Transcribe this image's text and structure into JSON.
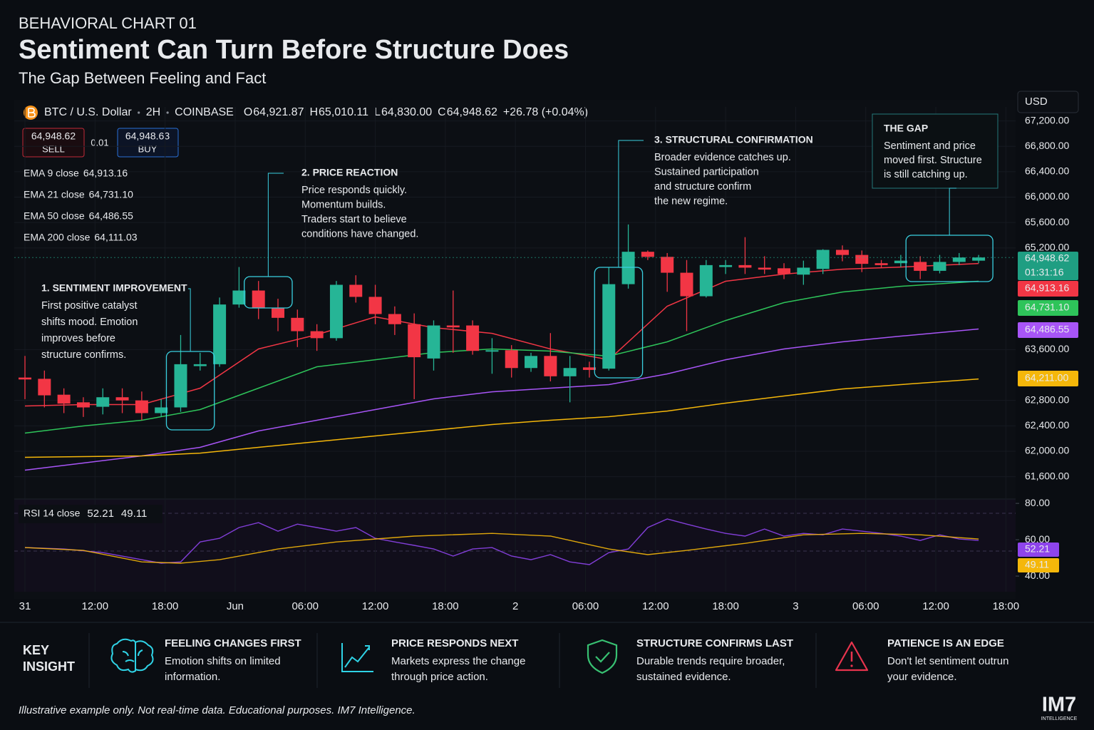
{
  "header": {
    "kicker": "BEHAVIORAL CHART 01",
    "title": "Sentiment Can Turn Before Structure Does",
    "subtitle": "The Gap Between Feeling and Fact"
  },
  "symbol": {
    "name": "BTC / U.S. Dollar",
    "interval": "2H",
    "exchange": "COINBASE",
    "ohlc": [
      {
        "key": "O",
        "value": "64,921.87"
      },
      {
        "key": "H",
        "value": "65,010.11"
      },
      {
        "key": "L",
        "value": "64,830.00"
      },
      {
        "key": "C",
        "value": "64,948.62"
      }
    ],
    "change": "+26.78 (+0.04%)"
  },
  "trade": {
    "sell_price": "64,948.62",
    "sell": "SELL",
    "spread": "0.01",
    "buy_price": "64,948.63",
    "buy": "BUY"
  },
  "price_axis": {
    "currency": "USD",
    "last_price": "64,948.62",
    "countdown": "01:31:16"
  },
  "chart_data": [
    {
      "type": "candlestick",
      "up_color": "#26b596",
      "down_color": "#f23645",
      "grid": true,
      "open": [
        63160,
        63140,
        62890,
        62770,
        62700,
        62850,
        62800,
        62600,
        62690,
        63340,
        63370,
        64310,
        64530,
        64260,
        64100,
        63890,
        63780,
        64620,
        64430,
        64160,
        64000,
        63460,
        63980,
        63980,
        63570,
        63590,
        63310,
        63500,
        63180,
        63320,
        63300,
        64630,
        65140,
        65060,
        64810,
        64440,
        64900,
        64930,
        64890,
        64880,
        64780,
        64870,
        65170,
        65090,
        64960,
        64960,
        64980,
        64840,
        64980,
        65000
      ],
      "high": [
        63500,
        63270,
        62990,
        62850,
        62990,
        62990,
        62940,
        62820,
        63830,
        63550,
        64420,
        64900,
        64680,
        64400,
        64230,
        64000,
        64680,
        64770,
        64620,
        64280,
        64170,
        64060,
        64530,
        64060,
        63780,
        63670,
        63550,
        63860,
        63500,
        63410,
        64900,
        65570,
        65160,
        65120,
        65010,
        65010,
        65010,
        65370,
        65070,
        64960,
        65000,
        65180,
        65240,
        65160,
        65010,
        65090,
        65070,
        65090,
        65120,
        65090
      ],
      "low": [
        62820,
        62690,
        62600,
        62540,
        62580,
        62600,
        62490,
        62540,
        62620,
        63270,
        63330,
        64260,
        64080,
        63890,
        63640,
        63580,
        63740,
        64340,
        64000,
        63830,
        62820,
        63270,
        63550,
        63520,
        63220,
        63160,
        63250,
        63100,
        62770,
        63160,
        63270,
        64560,
        65010,
        64510,
        63890,
        64420,
        64790,
        64790,
        64790,
        64710,
        64620,
        64790,
        64990,
        64820,
        64890,
        64900,
        64710,
        64800,
        64930,
        64960
      ],
      "close": [
        63130,
        62880,
        62750,
        62690,
        62850,
        62800,
        62600,
        62690,
        63370,
        63370,
        64310,
        64530,
        64260,
        64100,
        63890,
        63780,
        64620,
        64430,
        64160,
        64000,
        63480,
        63980,
        63950,
        63580,
        63590,
        63310,
        63500,
        63180,
        63310,
        63280,
        64630,
        65140,
        65060,
        64810,
        64440,
        64930,
        64930,
        64890,
        64860,
        64790,
        64890,
        65170,
        65090,
        64950,
        64930,
        65000,
        64840,
        64980,
        65050,
        65050
      ],
      "xlim": [
        -0.55,
        50.9
      ],
      "xticks": [
        {
          "value": 0,
          "label": "31"
        },
        {
          "value": 3.6,
          "label": "12:00"
        },
        {
          "value": 7.2,
          "label": "18:00"
        },
        {
          "value": 10.8,
          "label": "Jun"
        },
        {
          "value": 14.4,
          "label": "06:00"
        },
        {
          "value": 18,
          "label": "12:00"
        },
        {
          "value": 21.6,
          "label": "18:00"
        },
        {
          "value": 25.2,
          "label": "2"
        },
        {
          "value": 28.8,
          "label": "06:00"
        },
        {
          "value": 32.4,
          "label": "12:00"
        },
        {
          "value": 36,
          "label": "18:00"
        },
        {
          "value": 39.6,
          "label": "3"
        },
        {
          "value": 43.2,
          "label": "06:00"
        },
        {
          "value": 46.8,
          "label": "12:00"
        },
        {
          "value": 50.4,
          "label": "18:00"
        }
      ],
      "ylim": [
        61360,
        67420
      ],
      "yticks": [
        {
          "value": 67200,
          "label": "67,200.00"
        },
        {
          "value": 66800,
          "label": "66,800.00"
        },
        {
          "value": 66400,
          "label": "66,400.00"
        },
        {
          "value": 66000,
          "label": "66,000.00"
        },
        {
          "value": 65600,
          "label": "65,600.00"
        },
        {
          "value": 65200,
          "label": "65,200.00"
        },
        {
          "value": 63600,
          "label": "63,600.00"
        },
        {
          "value": 62800,
          "label": "62,800.00"
        },
        {
          "value": 62400,
          "label": "62,400.00"
        },
        {
          "value": 62000,
          "label": "62,000.00"
        },
        {
          "value": 61600,
          "label": "61,600.00"
        }
      ],
      "series": [
        {
          "name": "EMA 9 close",
          "color": "#f23645",
          "x": [
            0,
            3,
            6,
            9,
            12,
            15,
            18,
            21,
            24,
            27,
            30,
            33,
            36,
            39,
            42,
            45,
            49
          ],
          "values": [
            62712,
            62735,
            62735,
            62993,
            63610,
            63834,
            64115,
            63946,
            63856,
            63610,
            63441,
            64283,
            64676,
            64788,
            64866,
            64900,
            64956
          ],
          "last": {
            "value": 64913.16,
            "label": "64,913.16"
          }
        },
        {
          "name": "EMA 21 close",
          "color": "#2ec45a",
          "x": [
            0,
            3,
            6,
            9,
            12,
            15,
            18,
            21,
            24,
            27,
            30,
            33,
            36,
            39,
            42,
            45,
            49
          ],
          "values": [
            62286,
            62398,
            62488,
            62656,
            62993,
            63329,
            63441,
            63554,
            63610,
            63576,
            63497,
            63722,
            64058,
            64339,
            64507,
            64597,
            64676
          ],
          "last": {
            "value": 64731.1,
            "label": "64,731.10"
          }
        },
        {
          "name": "EMA 50 close",
          "color": "#a855f7",
          "x": [
            0,
            3,
            6,
            9,
            12,
            15,
            18,
            21,
            24,
            27,
            30,
            33,
            36,
            39,
            42,
            45,
            49
          ],
          "values": [
            61702,
            61814,
            61927,
            62061,
            62319,
            62488,
            62656,
            62824,
            62936,
            62993,
            63049,
            63217,
            63441,
            63610,
            63722,
            63812,
            63924
          ],
          "last": {
            "value": 64486.55,
            "label": "64,486.55"
          }
        },
        {
          "name": "EMA 200 close",
          "color": "#f5b70a",
          "x": [
            0,
            3,
            6,
            9,
            12,
            15,
            18,
            21,
            24,
            27,
            30,
            33,
            36,
            39,
            42,
            45,
            49
          ],
          "values": [
            61904,
            61915,
            61927,
            61971,
            62061,
            62151,
            62241,
            62331,
            62420,
            62488,
            62544,
            62633,
            62757,
            62869,
            62981,
            63049,
            63138
          ],
          "last": {
            "value": 64111.03,
            "label": "64,111.03"
          },
          "badge": {
            "value": 64211,
            "label": "64,211.00"
          }
        }
      ]
    },
    {
      "type": "line",
      "title": "RSI 14 close",
      "xlim": [
        -0.55,
        50.9
      ],
      "ylim": [
        31.4,
        82.4
      ],
      "yticks": [
        {
          "value": 80,
          "label": "80.00"
        },
        {
          "value": 60,
          "label": "60.00"
        },
        {
          "value": 40,
          "label": "40.00"
        }
      ],
      "series": [
        {
          "color": "#8e44ec",
          "x": [
            0,
            2,
            4,
            6,
            7,
            8,
            9,
            10,
            11,
            12,
            13,
            14,
            15,
            16,
            17,
            18,
            19,
            20,
            21,
            22,
            23,
            24,
            25,
            26,
            27,
            28,
            29,
            30,
            31,
            32,
            33,
            34,
            35,
            36,
            37,
            38,
            39,
            40,
            41,
            42,
            43,
            44,
            45,
            46,
            47,
            48,
            49
          ],
          "values": [
            55.7,
            54.9,
            52.9,
            49.0,
            47.1,
            47.8,
            58.8,
            60.8,
            66.7,
            69.4,
            64.7,
            68.6,
            66.7,
            64.7,
            66.7,
            60.8,
            58.8,
            56.9,
            54.9,
            51.0,
            54.9,
            55.7,
            51.0,
            49.0,
            51.8,
            47.8,
            46.3,
            52.9,
            54.9,
            66.7,
            71.4,
            68.6,
            65.9,
            63.5,
            62.0,
            65.9,
            62.0,
            63.5,
            62.7,
            65.9,
            64.7,
            63.5,
            62.0,
            59.6,
            62.7,
            60.4,
            59.6
          ],
          "last": 52.21
        },
        {
          "color": "#f5b70a",
          "x": [
            0,
            3,
            6,
            8,
            10,
            13,
            16,
            20,
            24,
            27,
            30,
            32,
            34,
            37,
            40,
            43,
            46,
            49
          ],
          "values": [
            55.7,
            54.1,
            47.8,
            47.1,
            49.0,
            54.9,
            58.8,
            62.0,
            63.5,
            62.0,
            54.9,
            51.8,
            54.1,
            58.0,
            62.7,
            63.5,
            62.7,
            60.4
          ],
          "last": 49.11
        }
      ]
    }
  ],
  "annotations": [
    {
      "title": "1. SENTIMENT IMPROVEMENT",
      "lines": [
        "First positive catalyst",
        "shifts mood. Emotion",
        "improves before",
        "structure confirms."
      ]
    },
    {
      "title": "2. PRICE REACTION",
      "lines": [
        "Price responds quickly.",
        "Momentum builds.",
        "Traders start to believe",
        "conditions have changed."
      ]
    },
    {
      "title": "3. STRUCTURAL CONFIRMATION",
      "lines": [
        "Broader evidence catches up.",
        "Sustained participation",
        "and structure confirm",
        "the new regime."
      ]
    },
    {
      "title": "THE GAP",
      "lines": [
        "Sentiment and price",
        "moved first. Structure",
        "is still catching up."
      ]
    }
  ],
  "footer": {
    "key_label": [
      "KEY",
      "INSIGHT"
    ],
    "items": [
      {
        "title": "FEELING CHANGES FIRST",
        "lines": [
          "Emotion shifts on limited",
          "information."
        ]
      },
      {
        "title": "PRICE RESPONDS NEXT",
        "lines": [
          "Markets express the change",
          "through price action."
        ]
      },
      {
        "title": "STRUCTURE CONFIRMS LAST",
        "lines": [
          "Durable trends require broader,",
          "sustained evidence."
        ]
      },
      {
        "title": "PATIENCE IS AN EDGE",
        "lines": [
          "Don't let sentiment outrun",
          "your evidence."
        ]
      }
    ],
    "note": "Illustrative example only. Not real-time data. Educational purposes. IM7 Intelligence.",
    "logo": "IM7",
    "logo_sub": "INTELLIGENCE"
  }
}
